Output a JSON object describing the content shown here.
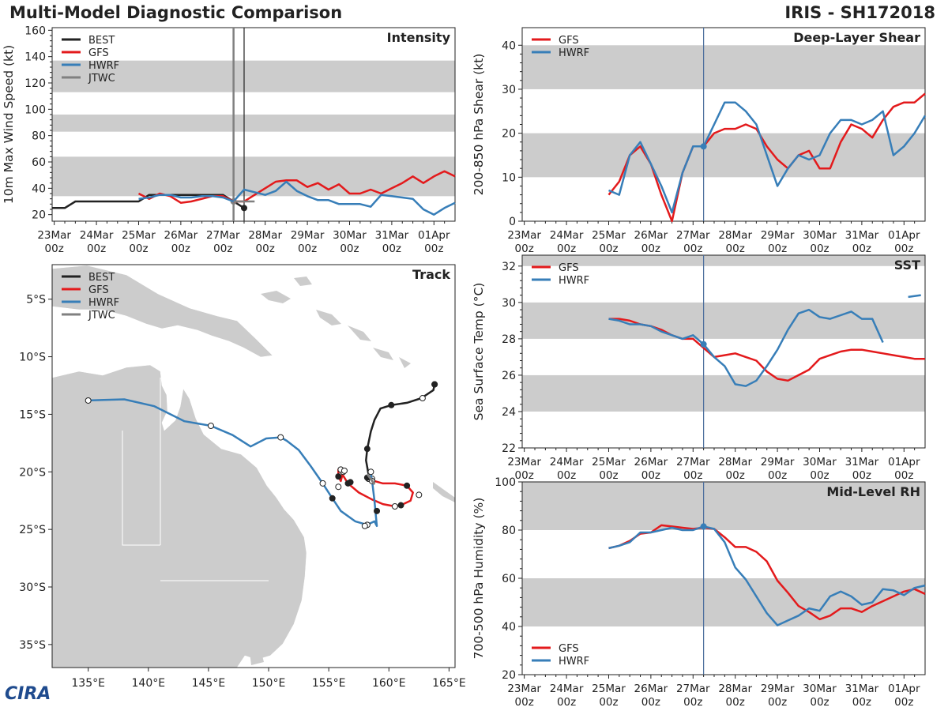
{
  "header": {
    "title_left": "Multi-Model Diagnostic Comparison",
    "title_right": "IRIS - SH172018"
  },
  "logo": {
    "text": "CIRA",
    "icon": "cira-logo-icon"
  },
  "colors": {
    "BEST": "#222222",
    "GFS": "#e31a1c",
    "HWRF": "#377eb8",
    "JTWC": "#808080",
    "band": "#cccccc",
    "land": "#cccccc",
    "sea": "#ffffff",
    "current_line": "#4a6d9c"
  },
  "time_axis": {
    "ticks": [
      {
        "day": "23Mar",
        "hour": "00z"
      },
      {
        "day": "24Mar",
        "hour": "00z"
      },
      {
        "day": "25Mar",
        "hour": "00z"
      },
      {
        "day": "26Mar",
        "hour": "00z"
      },
      {
        "day": "27Mar",
        "hour": "00z"
      },
      {
        "day": "28Mar",
        "hour": "00z"
      },
      {
        "day": "29Mar",
        "hour": "00z"
      },
      {
        "day": "30Mar",
        "hour": "00z"
      },
      {
        "day": "31Mar",
        "hour": "00z"
      },
      {
        "day": "01Apr",
        "hour": "00z"
      }
    ],
    "range_days": [
      -0.05,
      9.5
    ],
    "current_time": 4.25
  },
  "chart_data": [
    {
      "id": "intensity",
      "type": "line",
      "title": "Intensity",
      "ylabel": "10m Max Wind Speed (kt)",
      "ylim": [
        15,
        162
      ],
      "yticks": [
        20,
        40,
        60,
        80,
        100,
        120,
        140,
        160
      ],
      "bands": [
        [
          34,
          64
        ],
        [
          83,
          96
        ],
        [
          113,
          137
        ]
      ],
      "legend": [
        "BEST",
        "GFS",
        "HWRF",
        "JTWC"
      ],
      "vlines": [
        {
          "x": 4.25,
          "color": "#808080",
          "width": 2.5
        },
        {
          "x": 4.5,
          "color": "#222222",
          "width": 1.2
        }
      ],
      "series": [
        {
          "name": "BEST",
          "x": [
            -0.05,
            0.25,
            0.5,
            0.75,
            1,
            1.25,
            1.5,
            1.75,
            2,
            2.25,
            2.5,
            2.75,
            3,
            3.25,
            3.5,
            3.75,
            4,
            4.25,
            4.5
          ],
          "y": [
            25,
            25,
            30,
            30,
            30,
            30,
            30,
            30,
            30,
            35,
            35,
            35,
            35,
            35,
            35,
            35,
            35,
            30,
            25
          ],
          "markers_end": true
        },
        {
          "name": "GFS",
          "x": [
            2,
            2.25,
            2.5,
            2.75,
            3,
            3.25,
            3.5,
            3.75,
            4,
            4.25,
            4.5,
            4.75,
            5,
            5.25,
            5.5,
            5.75,
            6,
            6.25,
            6.5,
            6.75,
            7,
            7.25,
            7.5,
            7.75,
            8,
            8.25,
            8.5,
            8.75,
            9,
            9.25,
            9.5
          ],
          "y": [
            36,
            32,
            36,
            34,
            29,
            30,
            32,
            34,
            34,
            30,
            30,
            35,
            40,
            45,
            46,
            46,
            41,
            44,
            39,
            43,
            36,
            36,
            39,
            36,
            40,
            44,
            49,
            44,
            49,
            53,
            49
          ]
        },
        {
          "name": "HWRF",
          "x": [
            2,
            2.25,
            2.5,
            2.75,
            3,
            3.25,
            3.5,
            3.75,
            4,
            4.25,
            4.5,
            4.75,
            5,
            5.25,
            5.5,
            5.75,
            6,
            6.25,
            6.5,
            6.75,
            7,
            7.25,
            7.5,
            7.75,
            8,
            8.25,
            8.5,
            8.75,
            9,
            9.25,
            9.5
          ],
          "y": [
            32,
            33,
            35,
            35,
            33,
            33,
            34,
            34,
            33,
            30,
            39,
            37,
            35,
            38,
            45,
            38,
            34,
            31,
            31,
            28,
            28,
            28,
            26,
            35,
            34,
            33,
            32,
            24,
            20,
            25,
            29
          ]
        },
        {
          "name": "JTWC",
          "x": [
            4.25,
            4.5,
            4.75
          ],
          "y": [
            30,
            30,
            30
          ]
        }
      ]
    },
    {
      "id": "shear",
      "type": "line",
      "title": "Deep-Layer Shear",
      "ylabel": "200-850 hPa Shear (kt)",
      "ylim": [
        0,
        44
      ],
      "yticks": [
        0,
        10,
        20,
        30,
        40
      ],
      "bands": [
        [
          10,
          20
        ],
        [
          30,
          40
        ]
      ],
      "legend": [
        "GFS",
        "HWRF"
      ],
      "vlines": [
        {
          "x": 4.25,
          "color": "#4a6d9c",
          "width": 1.2
        }
      ],
      "series": [
        {
          "name": "GFS",
          "x": [
            2,
            2.25,
            2.5,
            2.75,
            3,
            3.25,
            3.5,
            3.75,
            4,
            4.25,
            4.5,
            4.75,
            5,
            5.25,
            5.5,
            5.75,
            6,
            6.25,
            6.5,
            6.75,
            7,
            7.25,
            7.5,
            7.75,
            8,
            8.25,
            8.5,
            8.75,
            9,
            9.25,
            9.5
          ],
          "y": [
            6,
            9,
            15,
            17,
            13,
            6,
            0,
            11,
            17,
            17,
            20,
            21,
            21,
            22,
            21,
            17,
            14,
            12,
            15,
            16,
            12,
            12,
            18,
            22,
            21,
            19,
            23,
            26,
            27,
            27,
            29
          ]
        },
        {
          "name": "HWRF",
          "x": [
            2,
            2.25,
            2.5,
            2.75,
            3,
            3.25,
            3.5,
            3.75,
            4,
            4.25,
            4.5,
            4.75,
            5,
            5.25,
            5.5,
            5.75,
            6,
            6.25,
            6.5,
            6.75,
            7,
            7.25,
            7.5,
            7.75,
            8,
            8.25,
            8.5,
            8.75,
            9,
            9.25,
            9.5
          ],
          "y": [
            7,
            6,
            15,
            18,
            13,
            8,
            2,
            11,
            17,
            17,
            22,
            27,
            27,
            25,
            22,
            15,
            8,
            12,
            15,
            14,
            15,
            20,
            23,
            23,
            22,
            23,
            25,
            15,
            17,
            20,
            24
          ],
          "marker_at": 4.25
        }
      ]
    },
    {
      "id": "sst",
      "type": "line",
      "title": "SST",
      "ylabel": "Sea Surface Temp (°C)",
      "ylim": [
        22,
        32.6
      ],
      "yticks": [
        22,
        24,
        26,
        28,
        30,
        32
      ],
      "bands": [
        [
          24,
          26
        ],
        [
          28,
          30
        ],
        [
          32,
          32.6
        ]
      ],
      "legend": [
        "GFS",
        "HWRF"
      ],
      "vlines": [
        {
          "x": 4.25,
          "color": "#4a6d9c",
          "width": 1.2
        }
      ],
      "series": [
        {
          "name": "GFS",
          "x": [
            2,
            2.25,
            2.5,
            2.75,
            3,
            3.25,
            3.5,
            3.75,
            4,
            4.25,
            4.5,
            4.75,
            5,
            5.25,
            5.5,
            5.75,
            6,
            6.25,
            6.5,
            6.75,
            7,
            7.25,
            7.5,
            7.75,
            8,
            8.25,
            8.5,
            8.75,
            9,
            9.25,
            9.5
          ],
          "y": [
            29.1,
            29.1,
            29,
            28.8,
            28.7,
            28.5,
            28.2,
            28,
            28,
            27.5,
            27,
            27.1,
            27.2,
            27,
            26.8,
            26.2,
            25.8,
            25.7,
            26,
            26.3,
            26.9,
            27.1,
            27.3,
            27.4,
            27.4,
            27.3,
            27.2,
            27.1,
            27,
            26.9,
            26.9
          ]
        },
        {
          "name": "HWRF",
          "x": [
            2,
            2.25,
            2.5,
            2.75,
            3,
            3.25,
            3.5,
            3.75,
            4,
            4.25,
            4.5,
            4.75,
            5,
            5.25,
            5.5,
            5.75,
            6,
            6.25,
            6.5,
            6.75,
            7,
            7.25,
            7.5,
            7.75,
            8,
            8.25,
            8.5
          ],
          "y": [
            29.1,
            29,
            28.8,
            28.8,
            28.7,
            28.4,
            28.2,
            28,
            28.2,
            27.7,
            27,
            26.5,
            25.5,
            25.4,
            25.7,
            26.5,
            27.4,
            28.5,
            29.4,
            29.6,
            29.2,
            29.1,
            29.3,
            29.5,
            29.1,
            29.1,
            27.8
          ],
          "marker_at": 4.25
        },
        {
          "name": "HWRF",
          "x": [
            9.1,
            9.4
          ],
          "y": [
            30.3,
            30.4
          ]
        }
      ]
    },
    {
      "id": "rh",
      "type": "line",
      "title": "Mid-Level RH",
      "ylabel": "700-500 hPa Humidity (%)",
      "ylim": [
        20,
        100
      ],
      "yticks": [
        20,
        40,
        60,
        80,
        100
      ],
      "bands": [
        [
          40,
          60
        ],
        [
          80,
          100
        ]
      ],
      "legend": [
        "GFS",
        "HWRF"
      ],
      "legend_position": "bottom-left",
      "vlines": [
        {
          "x": 4.25,
          "color": "#4a6d9c",
          "width": 1.2
        }
      ],
      "series": [
        {
          "name": "GFS",
          "x": [
            2,
            2.25,
            2.5,
            2.75,
            3,
            3.25,
            3.5,
            3.75,
            4,
            4.25,
            4.5,
            4.75,
            5,
            5.25,
            5.5,
            5.75,
            6,
            6.25,
            6.5,
            6.75,
            7,
            7.25,
            7.5,
            7.75,
            8,
            8.25,
            8.5,
            8.75,
            9,
            9.25,
            9.5
          ],
          "y": [
            72.5,
            73.5,
            75.5,
            78.5,
            79,
            82,
            81.5,
            81,
            80.5,
            81,
            80.5,
            77,
            73,
            73,
            71,
            67,
            59,
            54,
            48.5,
            46,
            43,
            44.5,
            47.5,
            47.5,
            46,
            48.5,
            50.5,
            52.5,
            54.5,
            55.5,
            53.5
          ]
        },
        {
          "name": "HWRF",
          "x": [
            2,
            2.25,
            2.5,
            2.75,
            3,
            3.25,
            3.5,
            3.75,
            4,
            4.25,
            4.5,
            4.75,
            5,
            5.25,
            5.5,
            5.75,
            6,
            6.25,
            6.5,
            6.75,
            7,
            7.25,
            7.5,
            7.75,
            8,
            8.25,
            8.5,
            8.75,
            9,
            9.25,
            9.5
          ],
          "y": [
            72.5,
            73.5,
            75,
            79,
            79,
            80,
            81,
            80,
            80,
            81.5,
            80.5,
            75,
            64.5,
            59.5,
            52.5,
            45.5,
            40.5,
            42.5,
            44.5,
            47.5,
            46.5,
            52.5,
            54.5,
            52.5,
            49,
            50,
            55.5,
            55,
            53,
            56,
            57
          ],
          "marker_at": 4.25
        }
      ]
    },
    {
      "id": "track",
      "type": "scatter",
      "title": "Track",
      "legend": [
        "BEST",
        "GFS",
        "HWRF",
        "JTWC"
      ],
      "lon_range": [
        132,
        165.5
      ],
      "lat_range": [
        -37,
        -2
      ],
      "xticks": [
        135,
        140,
        145,
        150,
        155,
        160,
        165
      ],
      "xtick_labels": [
        "135°E",
        "140°E",
        "145°E",
        "150°E",
        "155°E",
        "160°E",
        "165°E"
      ],
      "yticks": [
        -5,
        -10,
        -15,
        -20,
        -25,
        -30,
        -35
      ],
      "ytick_labels": [
        "5°S",
        "10°S",
        "15°S",
        "20°S",
        "25°S",
        "30°S",
        "35°S"
      ],
      "series": [
        {
          "name": "BEST",
          "lon": [
            163.8,
            163.7,
            162.7,
            161.5,
            160.2,
            159.3,
            158.8,
            158.5,
            158.2,
            158.1,
            158.2,
            158.3,
            158.3,
            158.4,
            158.6
          ],
          "lat": [
            -12.4,
            -12.9,
            -13.6,
            -14.0,
            -14.2,
            -14.5,
            -15.5,
            -16.5,
            -18.0,
            -19.0,
            -19.6,
            -20.2,
            -20.6,
            -20.7,
            -20.6
          ],
          "filled": [
            true,
            true,
            false,
            true,
            true,
            false,
            false,
            true,
            true,
            false,
            true,
            false,
            false,
            false,
            false
          ]
        },
        {
          "name": "GFS",
          "lon": [
            158.2,
            158.8,
            159.5,
            160.5,
            161.5,
            162.0,
            161.8,
            161.0,
            160.5,
            159.5,
            158.6,
            157.5,
            156.6,
            156.3,
            156.0,
            155.8,
            155.8,
            156.0,
            156.2
          ],
          "lat": [
            -20.5,
            -20.8,
            -21.0,
            -21.0,
            -21.2,
            -21.8,
            -22.5,
            -22.9,
            -23.0,
            -22.8,
            -22.4,
            -21.8,
            -21.0,
            -20.5,
            -20.0,
            -19.8,
            -20.4,
            -20.8,
            -20.0
          ],
          "filled": [
            true,
            false,
            false,
            false,
            true,
            false,
            false,
            true,
            false,
            false,
            false,
            false,
            true,
            false,
            false,
            true,
            true,
            false,
            false
          ]
        },
        {
          "name": "HWRF",
          "lon": [
            135.0,
            138.0,
            140.5,
            143.0,
            145.2,
            147.0,
            148.5,
            149.8,
            151.0,
            151.5,
            152.5,
            153.5,
            154.5,
            155.3,
            156.0,
            157.2,
            158.2,
            158.8,
            159.0,
            158.8,
            158.6,
            158.5,
            158.5
          ],
          "lat": [
            -13.8,
            -13.7,
            -14.3,
            -15.6,
            -16.0,
            -16.8,
            -17.8,
            -17.1,
            -17.0,
            -17.3,
            -18.1,
            -19.5,
            -21.0,
            -22.3,
            -23.4,
            -24.3,
            -24.6,
            -24.3,
            -24.7,
            -22.5,
            -20.8,
            -20.2,
            -20.0
          ],
          "filled": [
            false,
            false,
            true,
            false,
            false,
            false,
            true,
            false,
            false,
            false,
            true,
            false,
            false,
            true,
            false,
            false,
            false,
            false,
            false,
            false,
            false,
            false,
            false
          ]
        },
        {
          "name": "JTWC",
          "lon": [
            158.2,
            158.5,
            158.8
          ],
          "lat": [
            -20.2,
            -20.6,
            -21.1
          ]
        }
      ],
      "end_markers": [
        {
          "lon": 163.8,
          "lat": -12.4,
          "filled": true
        },
        {
          "lon": 162.8,
          "lat": -13.6,
          "filled": false
        },
        {
          "lon": 159.0,
          "lat": -23.4,
          "filled": true
        },
        {
          "lon": 161.0,
          "lat": -22.9,
          "filled": true
        },
        {
          "lon": 162.5,
          "lat": -22.0,
          "filled": false
        },
        {
          "lon": 156.8,
          "lat": -20.9,
          "filled": true
        },
        {
          "lon": 156.0,
          "lat": -19.8,
          "filled": false
        },
        {
          "lon": 155.8,
          "lat": -21.3,
          "filled": false
        },
        {
          "lon": 156.3,
          "lat": -19.9,
          "filled": false
        },
        {
          "lon": 158.0,
          "lat": -24.7,
          "filled": false
        },
        {
          "lon": 155.3,
          "lat": -22.3,
          "filled": true
        }
      ]
    }
  ]
}
